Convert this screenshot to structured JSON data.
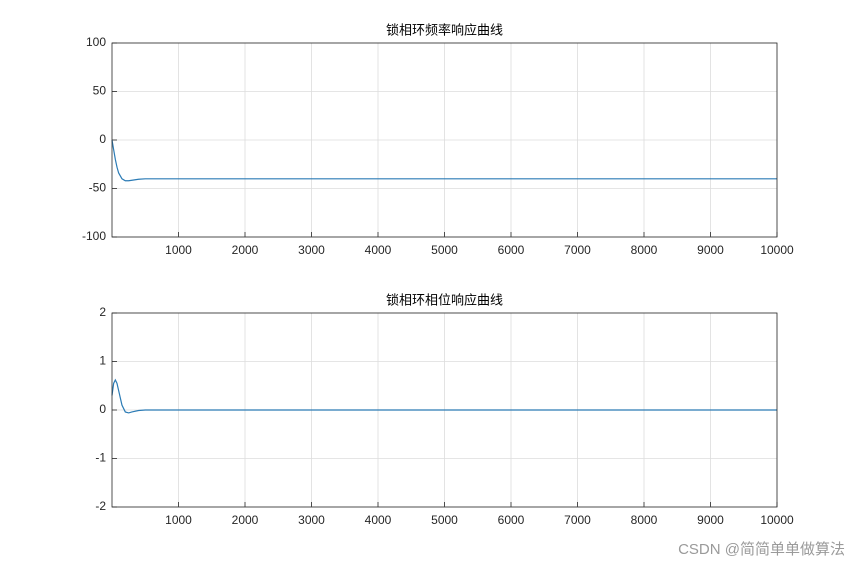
{
  "chart_data": [
    {
      "type": "line",
      "title": "锁相环频率响应曲线",
      "x": [
        0,
        25,
        50,
        75,
        100,
        150,
        200,
        250,
        300,
        400,
        500,
        600,
        1000,
        10000
      ],
      "series": [
        {
          "color": "#2b7bb5",
          "values": [
            0,
            -10,
            -20,
            -28,
            -34,
            -40,
            -42,
            -42,
            -41.5,
            -40.5,
            -40,
            -40,
            -40,
            -40
          ]
        }
      ],
      "xlim": [
        0,
        10000
      ],
      "xticks": [
        1000,
        2000,
        3000,
        4000,
        5000,
        6000,
        7000,
        8000,
        9000,
        10000
      ],
      "ylim": [
        -100,
        100
      ],
      "yticks": [
        -100,
        -50,
        0,
        50,
        100
      ],
      "grid": true
    },
    {
      "type": "line",
      "title": "锁相环相位响应曲线",
      "x": [
        0,
        25,
        50,
        75,
        100,
        150,
        200,
        250,
        300,
        400,
        500,
        600,
        1000,
        10000
      ],
      "series": [
        {
          "color": "#2b7bb5",
          "values": [
            0.3,
            0.55,
            0.62,
            0.55,
            0.4,
            0.1,
            -0.04,
            -0.06,
            -0.04,
            -0.01,
            0,
            0,
            0,
            0
          ]
        }
      ],
      "xlim": [
        0,
        10000
      ],
      "xticks": [
        1000,
        2000,
        3000,
        4000,
        5000,
        6000,
        7000,
        8000,
        9000,
        10000
      ],
      "ylim": [
        -2,
        2
      ],
      "yticks": [
        -2,
        -1,
        0,
        1,
        2
      ],
      "grid": true
    }
  ],
  "watermark": "CSDN @简简单单做算法"
}
